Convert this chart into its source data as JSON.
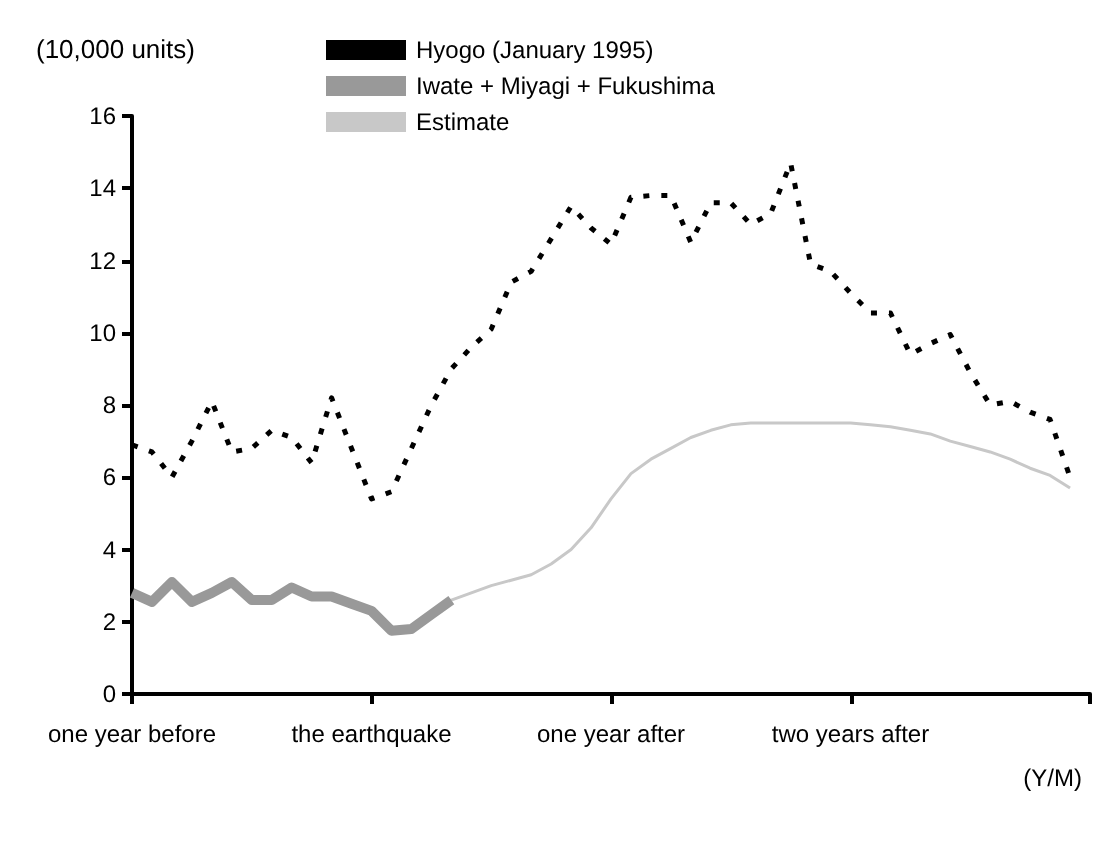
{
  "chart_data": {
    "type": "line",
    "ylabel": "(10,000 units)",
    "xlabel": "(Y/M)",
    "categories": [
      "one year before",
      null,
      null,
      null,
      null,
      null,
      null,
      null,
      null,
      null,
      null,
      null,
      "the earthquake",
      null,
      null,
      null,
      null,
      null,
      null,
      null,
      null,
      null,
      null,
      null,
      "one year after",
      null,
      null,
      null,
      null,
      null,
      null,
      null,
      null,
      null,
      null,
      null,
      "two years after",
      null,
      null,
      null,
      null,
      null,
      null,
      null,
      null,
      null,
      null,
      null,
      null
    ],
    "ylim": [
      0,
      16
    ],
    "yticks": [
      0,
      2,
      4,
      6,
      8,
      10,
      12,
      14,
      16
    ],
    "grid": false,
    "legend": "top",
    "marker": "none",
    "series": [
      {
        "name": "Hyogo (January 1995)",
        "color": "#000000",
        "line_style": "dotted",
        "values": [
          6.9,
          6.7,
          6.0,
          7.0,
          8.1,
          6.7,
          6.8,
          7.3,
          7.1,
          6.4,
          8.2,
          6.8,
          5.4,
          5.6,
          6.8,
          8.0,
          9.0,
          9.6,
          10.1,
          11.4,
          11.7,
          12.6,
          13.5,
          12.9,
          12.45,
          13.75,
          13.8,
          13.8,
          12.5,
          13.6,
          13.6,
          13.0,
          13.3,
          14.7,
          11.9,
          11.7,
          11.1,
          10.55,
          10.55,
          9.4,
          9.7,
          9.95,
          8.9,
          8.0,
          8.1,
          7.8,
          7.6,
          6.0,
          null
        ]
      },
      {
        "name": "Iwate + Miyagi + Fukushima",
        "color": "#999999",
        "line_style": "solid",
        "values": [
          2.8,
          2.55,
          3.1,
          2.55,
          2.8,
          3.1,
          2.6,
          2.6,
          2.95,
          2.7,
          2.7,
          2.5,
          2.3,
          1.75,
          1.8,
          2.2,
          2.6,
          null,
          null,
          null,
          null,
          null,
          null,
          null,
          null,
          null,
          null,
          null,
          null,
          null,
          null,
          null,
          null,
          null,
          null,
          null,
          null,
          null,
          null,
          null,
          null,
          null,
          null,
          null,
          null,
          null,
          null,
          null,
          null
        ]
      },
      {
        "name": "Estimate",
        "color": "#c8c8c8",
        "line_style": "solid",
        "values": [
          null,
          null,
          null,
          null,
          null,
          null,
          null,
          null,
          null,
          null,
          null,
          null,
          null,
          null,
          1.8,
          2.2,
          2.6,
          2.8,
          3.0,
          3.15,
          3.3,
          3.6,
          4.0,
          4.6,
          5.4,
          6.1,
          6.5,
          6.8,
          7.1,
          7.3,
          7.45,
          7.5,
          7.5,
          7.5,
          7.5,
          7.5,
          7.5,
          7.45,
          7.4,
          7.3,
          7.2,
          7.0,
          6.85,
          6.7,
          6.5,
          6.25,
          6.05,
          5.7,
          null
        ]
      }
    ]
  }
}
